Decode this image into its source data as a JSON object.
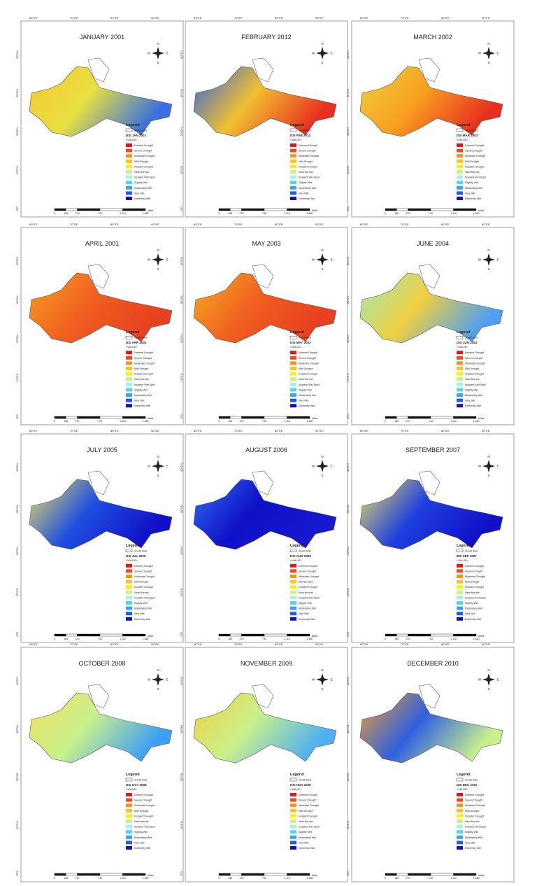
{
  "panels": [
    {
      "title": "JANUARY 2001",
      "layer": "DSI JAN 2001"
    },
    {
      "title": "FEBRUARY 2012",
      "layer": "DSI FEB 2012"
    },
    {
      "title": "MARCH 2002",
      "layer": "DSI MAR 2002"
    },
    {
      "title": "APRIL 2001",
      "layer": "DSI APR 2001"
    },
    {
      "title": "MAY 2003",
      "layer": "DSI MAY 2003"
    },
    {
      "title": "JUNE 2004",
      "layer": "DSI JUN 2004"
    },
    {
      "title": "JULY 2005",
      "layer": "DSI JUL 2005"
    },
    {
      "title": "AUGUST 2006",
      "layer": "DSI AUG 2006"
    },
    {
      "title": "SEPTEMBER 2007",
      "layer": "DSI SEP 2007"
    },
    {
      "title": "OCTOBER 2008",
      "layer": "DSI OCT 2008"
    },
    {
      "title": "NOVEMBER 2009",
      "layer": "DSI NOV 2009"
    },
    {
      "title": "DECEMBER 2010",
      "layer": "DSI DEC 2010"
    }
  ],
  "legend": {
    "title": "Legend",
    "boundary": "South Asia",
    "field": "<VALUE>",
    "classes": [
      "Extreme Drought",
      "Severe Drought",
      "Moderate Drought",
      "Mild Drought",
      "Incipient Drought",
      "Near Normal",
      "Incipient Wet Spell",
      "Slightly Wet",
      "Moderately Wet",
      "Very Wet",
      "Extremely Wet"
    ],
    "colors": [
      "#e8141c",
      "#f04a1c",
      "#f7941d",
      "#fbc02d",
      "#fff200",
      "#c9f08c",
      "#a8f0e0",
      "#4fd8e8",
      "#3ea0f0",
      "#2060e0",
      "#1010c8"
    ]
  },
  "compass": {
    "n": "N",
    "s": "S",
    "e": "E",
    "w": "W"
  },
  "scale": {
    "labels": [
      "0",
      "185",
      "370",
      "740",
      "1,110",
      "1,480"
    ],
    "unit": "Miles"
  },
  "graticule": {
    "top": [
      "60°0'E",
      "70°0'E",
      "80°0'E",
      "90°0'E"
    ],
    "left": [
      "40°0'N",
      "30°0'N",
      "20°0'N",
      "10°0'N",
      "0°0'"
    ]
  }
}
